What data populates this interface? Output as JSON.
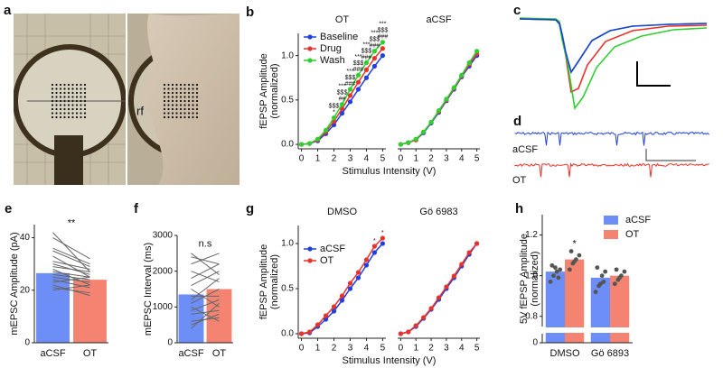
{
  "panels": {
    "a": {
      "label": "a",
      "annotation": "rf"
    },
    "c": {
      "label": "c"
    },
    "d": {
      "label": "d",
      "trace_labels": [
        "aCSF",
        "OT"
      ]
    }
  },
  "chart_data": [
    {
      "type": "line",
      "panel": "b",
      "xlabel": "Stimulus Intensity (V)",
      "ylabel": [
        "fEPSP Amplitude",
        "(normalized)"
      ],
      "xlim": [
        -0.2,
        5.2
      ],
      "xticks": [
        0,
        1,
        2,
        3,
        4,
        5
      ],
      "ylim": [
        -0.05,
        1.25
      ],
      "yticks": [
        {
          "value": 0,
          "label": "0.0"
        },
        {
          "value": 0.5,
          "label": "0.5"
        },
        {
          "value": 1,
          "label": "1.0"
        }
      ],
      "legend": "upper left",
      "subplots": [
        {
          "title": "OT",
          "x": [
            0,
            0.5,
            1,
            1.5,
            2,
            2.5,
            3,
            3.5,
            4,
            4.5,
            5
          ],
          "series": [
            {
              "name": "Baseline",
              "color": "#1f3fe0",
              "values": [
                0,
                0.01,
                0.04,
                0.12,
                0.22,
                0.35,
                0.48,
                0.62,
                0.75,
                0.88,
                1.0
              ]
            },
            {
              "name": "Drug",
              "color": "#e8322a",
              "values": [
                0,
                0.01,
                0.05,
                0.14,
                0.26,
                0.4,
                0.55,
                0.7,
                0.84,
                0.97,
                1.08
              ]
            },
            {
              "name": "Wash",
              "color": "#2fcf2f",
              "values": [
                0,
                0.01,
                0.06,
                0.16,
                0.3,
                0.45,
                0.62,
                0.78,
                0.92,
                1.05,
                1.15
              ]
            }
          ],
          "annotations": [
            {
              "x": 2,
              "text": [
                "$$$",
                "*"
              ]
            },
            {
              "x": 2.5,
              "text": [
                "***",
                "$$$",
                "##"
              ]
            },
            {
              "x": 3,
              "text": [
                "***",
                "$$$",
                "###"
              ]
            },
            {
              "x": 3.5,
              "text": [
                "***",
                "$$$",
                "###"
              ]
            },
            {
              "x": 4,
              "text": [
                "***",
                "$$$",
                "###"
              ]
            },
            {
              "x": 4.5,
              "text": [
                "***",
                "$$$",
                "###"
              ]
            },
            {
              "x": 5,
              "text": [
                "***",
                "$$$",
                "###"
              ]
            }
          ]
        },
        {
          "title": "aCSF",
          "x": [
            0,
            0.5,
            1,
            1.5,
            2,
            2.5,
            3,
            3.5,
            4,
            4.5,
            5
          ],
          "series": [
            {
              "color": "#1f3fe0",
              "values": [
                0,
                0.02,
                0.05,
                0.13,
                0.24,
                0.36,
                0.49,
                0.62,
                0.76,
                0.88,
                1.0
              ]
            },
            {
              "color": "#e8322a",
              "values": [
                0,
                0.02,
                0.05,
                0.14,
                0.25,
                0.37,
                0.5,
                0.63,
                0.77,
                0.9,
                1.02
              ]
            },
            {
              "color": "#2fcf2f",
              "values": [
                0,
                0.02,
                0.06,
                0.14,
                0.25,
                0.38,
                0.51,
                0.64,
                0.78,
                0.92,
                1.05
              ]
            }
          ]
        }
      ]
    },
    {
      "type": "paired_bar",
      "panel": "e",
      "ylabel": "mEPSC Amplitude (pA)",
      "categories": [
        "aCSF",
        "OT"
      ],
      "values": [
        26.5,
        24
      ],
      "colors": [
        "#6d8ef7",
        "#f48471"
      ],
      "ylim": [
        0,
        45
      ],
      "yticks": [
        0,
        20,
        40
      ],
      "annotation": "**",
      "pairs": [
        [
          20,
          22
        ],
        [
          22,
          18
        ],
        [
          24,
          21
        ],
        [
          25,
          23
        ],
        [
          26,
          24
        ],
        [
          27,
          25
        ],
        [
          28,
          22
        ],
        [
          29,
          27
        ],
        [
          30,
          26
        ],
        [
          31,
          28
        ],
        [
          33,
          25
        ],
        [
          35,
          29
        ],
        [
          36,
          30
        ],
        [
          40,
          32
        ],
        [
          42,
          27
        ],
        [
          23,
          25
        ],
        [
          21,
          19
        ]
      ]
    },
    {
      "type": "paired_bar",
      "panel": "f",
      "ylabel": "mEPSC Interval (ms)",
      "categories": [
        "aCSF",
        "OT"
      ],
      "values": [
        1350,
        1500
      ],
      "colors": [
        "#6d8ef7",
        "#f48471"
      ],
      "ylim": [
        0,
        3000
      ],
      "yticks": [
        0,
        1000,
        2000,
        3000
      ],
      "annotation": "n.s",
      "pairs": [
        [
          400,
          1100
        ],
        [
          600,
          700
        ],
        [
          800,
          900
        ],
        [
          900,
          1200
        ],
        [
          1000,
          600
        ],
        [
          1100,
          1500
        ],
        [
          1200,
          1800
        ],
        [
          1300,
          1300
        ],
        [
          1500,
          1000
        ],
        [
          1600,
          2000
        ],
        [
          1800,
          2200
        ],
        [
          2000,
          1700
        ],
        [
          2200,
          2500
        ],
        [
          2400,
          2200
        ],
        [
          2500,
          1900
        ],
        [
          500,
          800
        ]
      ]
    },
    {
      "type": "line",
      "panel": "g",
      "xlabel": "Stimulus Intensity (V)",
      "ylabel": [
        "fEPSP Amplitude",
        "(normalized)"
      ],
      "xlim": [
        -0.2,
        5.2
      ],
      "xticks": [
        0,
        1,
        2,
        3,
        4,
        5
      ],
      "ylim": [
        -0.05,
        1.2
      ],
      "yticks": [
        {
          "value": 0,
          "label": "0.0"
        },
        {
          "value": 0.5,
          "label": "0.5"
        },
        {
          "value": 1,
          "label": "1.0"
        }
      ],
      "legend": "upper left",
      "subplots": [
        {
          "title": "DMSO",
          "x": [
            0,
            0.5,
            1,
            1.5,
            2,
            2.5,
            3,
            3.5,
            4,
            4.5,
            5
          ],
          "series": [
            {
              "name": "aCSF",
              "color": "#1f3fe0",
              "values": [
                0,
                0.01,
                0.08,
                0.16,
                0.25,
                0.37,
                0.5,
                0.62,
                0.76,
                0.9,
                1.0
              ]
            },
            {
              "name": "OT",
              "color": "#e8322a",
              "values": [
                0,
                0.02,
                0.1,
                0.2,
                0.3,
                0.42,
                0.56,
                0.68,
                0.82,
                0.97,
                1.06
              ]
            }
          ],
          "annotations": [
            {
              "x": 4.5,
              "text": [
                "*"
              ]
            },
            {
              "x": 5,
              "text": [
                "*"
              ]
            }
          ]
        },
        {
          "title": "Gö 6983",
          "x": [
            0,
            0.5,
            1,
            1.5,
            2,
            2.5,
            3,
            3.5,
            4,
            4.5,
            5
          ],
          "series": [
            {
              "color": "#1f3fe0",
              "values": [
                0,
                0.02,
                0.08,
                0.17,
                0.27,
                0.38,
                0.5,
                0.62,
                0.75,
                0.88,
                1.0
              ]
            },
            {
              "color": "#e8322a",
              "values": [
                0,
                0.02,
                0.09,
                0.18,
                0.28,
                0.4,
                0.52,
                0.64,
                0.77,
                0.9,
                1.0
              ]
            }
          ]
        }
      ]
    },
    {
      "type": "grouped_bar",
      "panel": "h",
      "ylabel": [
        "5V fEPSP Amplitude",
        "(normalized)"
      ],
      "categories": [
        "DMSO",
        "Gö 6893"
      ],
      "legend": "upper right",
      "ylim": [
        0,
        1.3
      ],
      "ybreak": [
        0.05,
        0.75
      ],
      "yticks": [
        {
          "value": 0,
          "label": "0"
        },
        {
          "value": 0.8,
          "label": "0.8"
        },
        {
          "value": 1,
          "label": "1.0"
        },
        {
          "value": 1.2,
          "label": "1.2"
        }
      ],
      "series": [
        {
          "name": "aCSF",
          "color": "#6d8ef7",
          "values": [
            1.02,
            0.99
          ],
          "points": [
            [
              0.97,
              1.0,
              1.02,
              1.03,
              1.05,
              1.04,
              0.99
            ],
            [
              0.92,
              0.95,
              1.0,
              1.02,
              1.04,
              0.96,
              0.97
            ]
          ]
        },
        {
          "name": "OT",
          "color": "#f48471",
          "values": [
            1.08,
            1.0
          ],
          "points": [
            [
              1.03,
              1.06,
              1.08,
              1.1,
              1.12,
              1.07
            ],
            [
              0.96,
              0.98,
              1.0,
              1.02,
              1.03,
              0.99
            ]
          ]
        }
      ],
      "annotations": [
        {
          "x": "DMSO",
          "text": "*"
        }
      ]
    }
  ]
}
